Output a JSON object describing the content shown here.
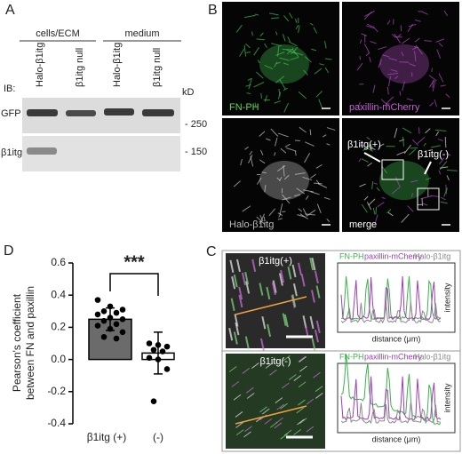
{
  "panel_a": {
    "label": "A",
    "groups": [
      "cells/ECM",
      "medium"
    ],
    "lanes": [
      "Halo-β1itg",
      "β1itg null",
      "Halo-β1itg",
      "β1itg null"
    ],
    "ib": "IB:",
    "unit": "kD",
    "rows": [
      {
        "name": "GFP",
        "marker": "- 250"
      },
      {
        "name": "β1itg",
        "marker": "- 150"
      }
    ]
  },
  "panel_b": {
    "label": "B",
    "channels": [
      "FN-PH",
      "paxillin-mCherry",
      "Halo-β1itg",
      "merge"
    ],
    "annotations": [
      "β1itg(+)",
      "β1itg(-)"
    ]
  },
  "panel_c": {
    "label": "C",
    "insets": [
      {
        "title": "β1itg(+)",
        "legend": [
          "FN-PH",
          "paxillin-mCherry",
          "Halo-β1itg"
        ],
        "ylabel": "intensity",
        "xlabel": "distance (μm)"
      },
      {
        "title": "β1itg(-)",
        "legend": [
          "FN-PH",
          "paxillin-mCherry",
          "Halo-β1itg"
        ],
        "ylabel": "intensity",
        "xlabel": "distance (μm)"
      }
    ]
  },
  "chart_data": {
    "type": "bar",
    "label": "D",
    "ylabel": [
      "Pearson's coefficient",
      "between FN and paxillin"
    ],
    "categories": [
      "β1itg (+)",
      "(-)"
    ],
    "values": [
      0.25,
      0.04
    ],
    "errors": [
      0.07,
      0.13
    ],
    "colors": [
      "#6b6b6b",
      "#ffffff"
    ],
    "points": [
      [
        0.37,
        0.33,
        0.31,
        0.3,
        0.29,
        0.28,
        0.26,
        0.25,
        0.24,
        0.22,
        0.21,
        0.19,
        0.17,
        0.14,
        0.13
      ],
      [
        0.1,
        0.09,
        0.08,
        0.06,
        0.05,
        0.01,
        0.0,
        -0.06,
        -0.26
      ]
    ],
    "ylim": [
      -0.4,
      0.6
    ],
    "yticks": [
      -0.4,
      -0.2,
      {
        "value": 0,
        "label": "0.0"
      },
      0.2,
      0.4,
      0.6
    ],
    "annotation": "***"
  }
}
